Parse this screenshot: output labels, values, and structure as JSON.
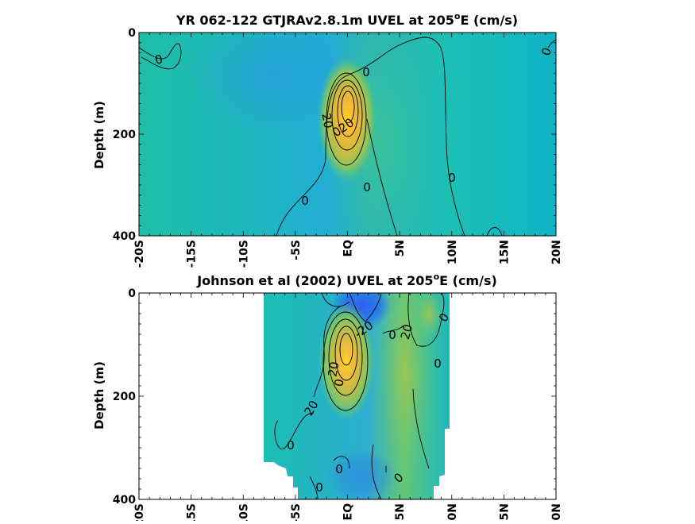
{
  "chart_data": [
    {
      "type": "heatmap",
      "title_main": "YR 062-122 GTJRAv2.8.1m UVEL at 205",
      "title_sup": "o",
      "title_tail": "E (cm/s)",
      "ylabel": "Depth (m)",
      "xlim": [
        -20,
        20
      ],
      "ylim": [
        400,
        0
      ],
      "xticks": [
        -20,
        -15,
        -10,
        -5,
        0,
        5,
        10,
        15,
        20
      ],
      "xtick_labels": [
        "-20S",
        "-15S",
        "-10S",
        "-5S",
        "EQ",
        "5N",
        "10N",
        "15N",
        "20N"
      ],
      "yticks": [
        0,
        200,
        400
      ],
      "ytick_labels": [
        "0",
        "200",
        "400"
      ],
      "contour_labels": [
        "0",
        "0",
        "0",
        "0",
        "0",
        "0",
        "20",
        "20",
        "0"
      ],
      "core": {
        "lat": 0.5,
        "depth": 145,
        "value_max_approx": 80
      },
      "colormap": "parula"
    },
    {
      "type": "heatmap",
      "title_main": "Johnson et al (2002) UVEL at 205",
      "title_sup": "o",
      "title_tail": "E (cm/s)",
      "ylabel": "Depth (m)",
      "xlim": [
        -20,
        20
      ],
      "ylim": [
        400,
        0
      ],
      "data_lat_range": [
        -8,
        10
      ],
      "xticks": [
        -20,
        -15,
        -10,
        -5,
        0,
        5,
        10,
        15,
        20
      ],
      "xtick_labels": [
        "-20S",
        "-15S",
        "-10S",
        "-5S",
        "EQ",
        "5N",
        "10N",
        "15N",
        "20N"
      ],
      "yticks": [
        0,
        200,
        400
      ],
      "ytick_labels": [
        "0",
        "200",
        "400"
      ],
      "contour_labels": [
        "-20",
        "20",
        "0",
        "0",
        "0",
        "20",
        "0",
        "0",
        "0",
        "0",
        "20",
        "0"
      ],
      "core": {
        "lat": 0.0,
        "depth": 140,
        "value_max_approx": 90
      },
      "colormap": "parula"
    }
  ]
}
